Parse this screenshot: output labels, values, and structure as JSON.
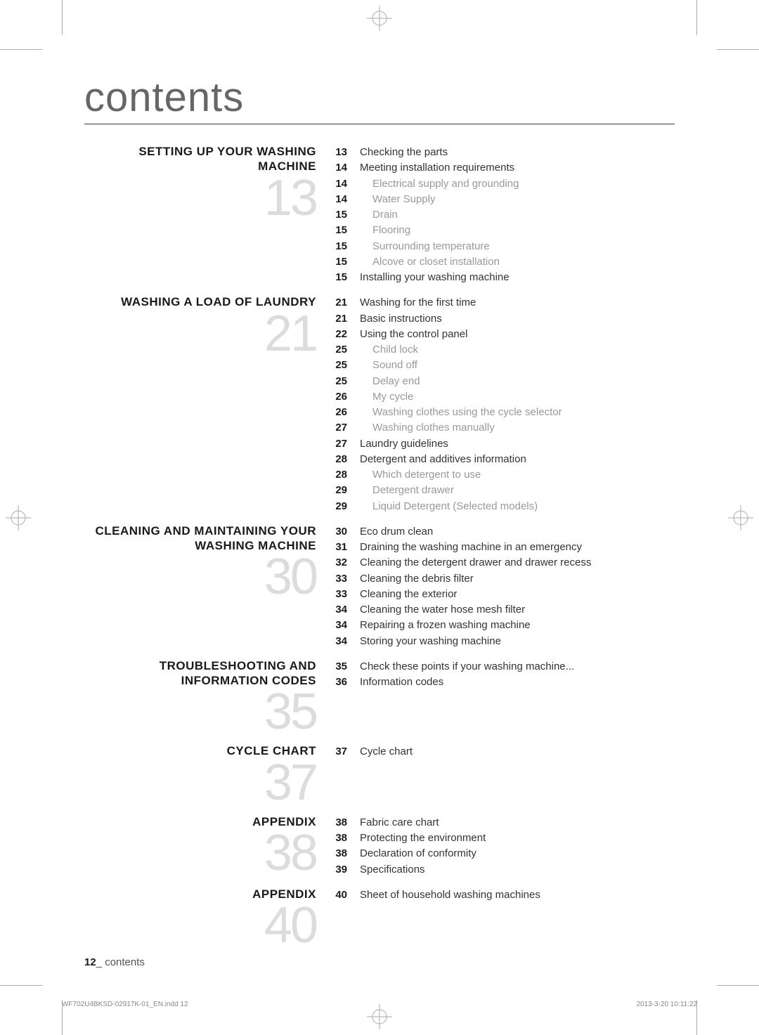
{
  "title": "contents",
  "sections": [
    {
      "title": "SETTING UP YOUR WASHING MACHINE",
      "bigNum": "13",
      "entries": [
        {
          "pg": "13",
          "text": "Checking the parts",
          "sub": false
        },
        {
          "pg": "14",
          "text": "Meeting installation requirements",
          "sub": false
        },
        {
          "pg": "14",
          "text": "Electrical supply and grounding",
          "sub": true
        },
        {
          "pg": "14",
          "text": "Water Supply",
          "sub": true
        },
        {
          "pg": "15",
          "text": "Drain",
          "sub": true
        },
        {
          "pg": "15",
          "text": "Flooring",
          "sub": true
        },
        {
          "pg": "15",
          "text": "Surrounding temperature",
          "sub": true
        },
        {
          "pg": "15",
          "text": "Alcove or closet installation",
          "sub": true
        },
        {
          "pg": "15",
          "text": "Installing your washing machine",
          "sub": false
        }
      ]
    },
    {
      "title": "WASHING A LOAD OF LAUNDRY",
      "bigNum": "21",
      "entries": [
        {
          "pg": "21",
          "text": "Washing for the first time",
          "sub": false
        },
        {
          "pg": "21",
          "text": "Basic instructions",
          "sub": false
        },
        {
          "pg": "22",
          "text": "Using the control panel",
          "sub": false
        },
        {
          "pg": "25",
          "text": "Child lock",
          "sub": true
        },
        {
          "pg": "25",
          "text": "Sound off",
          "sub": true
        },
        {
          "pg": "25",
          "text": "Delay end",
          "sub": true
        },
        {
          "pg": "26",
          "text": "My cycle",
          "sub": true
        },
        {
          "pg": "26",
          "text": "Washing clothes using the cycle selector",
          "sub": true
        },
        {
          "pg": "27",
          "text": "Washing clothes manually",
          "sub": true
        },
        {
          "pg": "27",
          "text": "Laundry guidelines",
          "sub": false
        },
        {
          "pg": "28",
          "text": "Detergent and additives information",
          "sub": false
        },
        {
          "pg": "28",
          "text": "Which detergent to use",
          "sub": true
        },
        {
          "pg": "29",
          "text": "Detergent drawer",
          "sub": true
        },
        {
          "pg": "29",
          "text": "Liquid Detergent (Selected models)",
          "sub": true
        }
      ]
    },
    {
      "title": "CLEANING AND MAINTAINING YOUR WASHING MACHINE",
      "bigNum": "30",
      "entries": [
        {
          "pg": "30",
          "text": "Eco drum clean",
          "sub": false
        },
        {
          "pg": "31",
          "text": "Draining the washing machine in an emergency",
          "sub": false
        },
        {
          "pg": "32",
          "text": "Cleaning the detergent drawer and drawer recess",
          "sub": false
        },
        {
          "pg": "33",
          "text": "Cleaning the debris filter",
          "sub": false
        },
        {
          "pg": "33",
          "text": "Cleaning the exterior",
          "sub": false
        },
        {
          "pg": "34",
          "text": "Cleaning the water hose mesh filter",
          "sub": false
        },
        {
          "pg": "34",
          "text": "Repairing a frozen washing machine",
          "sub": false
        },
        {
          "pg": "34",
          "text": "Storing your washing machine",
          "sub": false
        }
      ]
    },
    {
      "title": "TROUBLESHOOTING AND INFORMATION CODES",
      "bigNum": "35",
      "entries": [
        {
          "pg": "35",
          "text": "Check these points if your washing machine...",
          "sub": false
        },
        {
          "pg": "36",
          "text": "Information codes",
          "sub": false
        }
      ]
    },
    {
      "title": "CYCLE CHART",
      "bigNum": "37",
      "entries": [
        {
          "pg": "37",
          "text": "Cycle chart",
          "sub": false
        }
      ]
    },
    {
      "title": "APPENDIX",
      "bigNum": "38",
      "entries": [
        {
          "pg": "38",
          "text": "Fabric care chart",
          "sub": false
        },
        {
          "pg": "38",
          "text": "Protecting the environment",
          "sub": false
        },
        {
          "pg": "38",
          "text": "Declaration of conformity",
          "sub": false
        },
        {
          "pg": "39",
          "text": "Specifications",
          "sub": false
        }
      ]
    },
    {
      "title": "APPENDIX",
      "bigNum": "40",
      "entries": [
        {
          "pg": "40",
          "text": "Sheet of household washing machines",
          "sub": false
        }
      ]
    }
  ],
  "footer": {
    "pageNum": "12",
    "label": "_ contents"
  },
  "printInfo": {
    "file": "WF702U4BKSD-02917K-01_EN.indd   12",
    "timestamp": "2013-3-20   10:11:22"
  },
  "colors": {
    "bigNum": "#dcdcdc",
    "subText": "#999999",
    "mainText": "#333333",
    "title": "#666666"
  }
}
